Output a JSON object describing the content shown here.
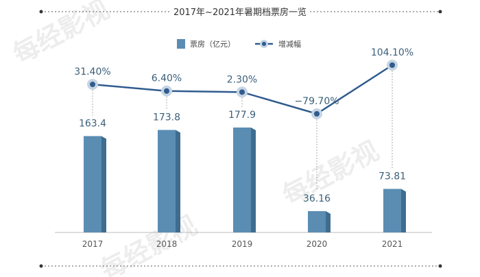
{
  "chart_data": {
    "type": "bar",
    "title": "2017年~2021年暑期档票房一览",
    "categories": [
      "2017",
      "2018",
      "2019",
      "2020",
      "2021"
    ],
    "series": [
      {
        "name": "票房（亿元）",
        "kind": "bar",
        "values": [
          163.4,
          173.8,
          177.9,
          36.16,
          73.81
        ],
        "labels": [
          "163.4",
          "173.8",
          "177.9",
          "36.16",
          "73.81"
        ],
        "color": "#5b8db3"
      },
      {
        "name": "增减幅",
        "kind": "line",
        "values": [
          31.4,
          6.4,
          2.3,
          -79.7,
          104.1
        ],
        "labels": [
          "31.40%",
          "6.40%",
          "2.30%",
          "−79.70%",
          "104.10%"
        ],
        "color": "#2f5b8e"
      }
    ],
    "legend_position": "top-center",
    "grid": false
  },
  "watermark": "每经影视",
  "colors": {
    "bar_front": "#5b8db3",
    "bar_side": "#3e6d8f",
    "line": "#2f5b8e",
    "marker_halo": "#c5d4e3",
    "axis": "#bbbbbb",
    "dashed": "#555555"
  }
}
